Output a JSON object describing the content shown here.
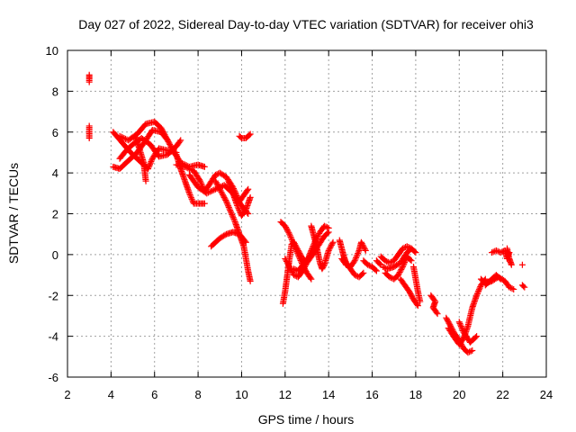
{
  "chart_data": {
    "type": "scatter",
    "title": "Day 027 of 2022, Sidereal Day-to-day VTEC variation (SDTVAR) for receiver ohi3",
    "xlabel": "GPS time / hours",
    "ylabel": "SDTVAR / TECUs",
    "xlim": [
      2,
      24
    ],
    "ylim": [
      -6,
      10
    ],
    "xticks": [
      2,
      4,
      6,
      8,
      10,
      12,
      14,
      16,
      18,
      20,
      22,
      24
    ],
    "yticks": [
      -6,
      -4,
      -2,
      0,
      2,
      4,
      6,
      8,
      10
    ],
    "xtick_labels": [
      "2",
      "4",
      "6",
      "8",
      "10",
      "12",
      "14",
      "16",
      "18",
      "20",
      "22",
      "24"
    ],
    "ytick_labels": [
      "-6",
      "-4",
      "-2",
      "0",
      "2",
      "4",
      "6",
      "8",
      "10"
    ],
    "grid": true,
    "marker": "plus",
    "series": [
      {
        "name": "SDTVAR",
        "color": "#ff0000",
        "segments": [
          [
            [
              3.0,
              8.8
            ],
            [
              3.0,
              8.6
            ],
            [
              3.0,
              8.45
            ]
          ],
          [
            [
              3.0,
              6.3
            ],
            [
              3.0,
              6.0
            ],
            [
              3.0,
              5.7
            ]
          ],
          [
            [
              4.1,
              4.3
            ],
            [
              4.4,
              4.2
            ],
            [
              4.8,
              4.6
            ],
            [
              5.2,
              5.0
            ],
            [
              5.6,
              5.6
            ],
            [
              5.9,
              6.1
            ],
            [
              6.3,
              6.0
            ],
            [
              6.6,
              5.6
            ]
          ],
          [
            [
              4.1,
              6.0
            ],
            [
              4.5,
              5.5
            ],
            [
              4.9,
              5.0
            ],
            [
              5.3,
              4.6
            ],
            [
              5.7,
              4.2
            ],
            [
              5.9,
              4.7
            ],
            [
              6.2,
              5.2
            ],
            [
              6.6,
              5.1
            ],
            [
              7.0,
              5.0
            ]
          ],
          [
            [
              4.4,
              5.8
            ],
            [
              4.8,
              5.6
            ],
            [
              5.2,
              5.9
            ],
            [
              5.6,
              6.4
            ],
            [
              6.0,
              6.5
            ],
            [
              6.3,
              6.2
            ],
            [
              6.6,
              5.6
            ],
            [
              6.9,
              5.0
            ],
            [
              7.2,
              4.5
            ],
            [
              7.6,
              4.3
            ],
            [
              8.0,
              4.4
            ],
            [
              8.3,
              4.3
            ]
          ],
          [
            [
              5.1,
              5.8
            ],
            [
              5.3,
              5.2
            ],
            [
              5.5,
              4.5
            ],
            [
              5.6,
              3.6
            ]
          ],
          [
            [
              4.4,
              4.7
            ],
            [
              4.7,
              5.1
            ],
            [
              5.0,
              5.4
            ],
            [
              5.4,
              5.7
            ],
            [
              5.8,
              5.4
            ],
            [
              6.2,
              4.8
            ],
            [
              6.6,
              4.9
            ],
            [
              7.0,
              5.3
            ],
            [
              7.2,
              5.6
            ]
          ],
          [
            [
              7.0,
              4.9
            ],
            [
              7.2,
              4.2
            ],
            [
              7.4,
              3.6
            ],
            [
              7.6,
              3.0
            ],
            [
              7.8,
              2.5
            ],
            [
              8.0,
              2.5
            ],
            [
              8.3,
              2.5
            ]
          ],
          [
            [
              7.0,
              4.4
            ],
            [
              7.4,
              4.3
            ],
            [
              7.8,
              4.1
            ],
            [
              8.1,
              3.6
            ],
            [
              8.3,
              3.1
            ],
            [
              8.5,
              3.4
            ],
            [
              8.8,
              3.9
            ],
            [
              9.0,
              4.0
            ],
            [
              9.3,
              3.8
            ],
            [
              9.6,
              3.3
            ],
            [
              9.9,
              2.6
            ],
            [
              10.1,
              2.9
            ],
            [
              10.3,
              3.2
            ]
          ],
          [
            [
              7.6,
              3.9
            ],
            [
              8.0,
              3.3
            ],
            [
              8.4,
              3.0
            ],
            [
              8.8,
              3.2
            ],
            [
              9.2,
              3.4
            ],
            [
              9.6,
              3.0
            ],
            [
              10.0,
              2.4
            ],
            [
              10.3,
              2.0
            ]
          ],
          [
            [
              8.6,
              0.4
            ],
            [
              8.8,
              0.6
            ],
            [
              9.0,
              0.8
            ],
            [
              9.3,
              1.0
            ],
            [
              9.6,
              1.1
            ],
            [
              9.9,
              1.0
            ],
            [
              10.2,
              0.6
            ]
          ],
          [
            [
              8.8,
              3.6
            ],
            [
              9.1,
              3.0
            ],
            [
              9.3,
              2.6
            ],
            [
              9.5,
              2.1
            ],
            [
              9.7,
              1.6
            ],
            [
              9.9,
              1.0
            ],
            [
              10.1,
              0.4
            ],
            [
              10.2,
              -0.2
            ],
            [
              10.3,
              -0.8
            ],
            [
              10.4,
              -1.3
            ]
          ],
          [
            [
              9.4,
              3.6
            ],
            [
              9.6,
              3.0
            ],
            [
              9.8,
              2.4
            ],
            [
              10.0,
              1.9
            ],
            [
              10.2,
              2.2
            ],
            [
              10.4,
              2.8
            ]
          ],
          [
            [
              9.9,
              5.8
            ],
            [
              10.0,
              5.7
            ],
            [
              10.2,
              5.7
            ],
            [
              10.4,
              5.9
            ]
          ],
          [
            [
              11.8,
              1.6
            ],
            [
              12.0,
              1.4
            ],
            [
              12.2,
              1.0
            ],
            [
              12.4,
              0.5
            ],
            [
              12.6,
              0.0
            ],
            [
              12.8,
              -0.5
            ],
            [
              13.0,
              -0.9
            ],
            [
              13.2,
              -1.2
            ]
          ],
          [
            [
              11.9,
              -2.4
            ],
            [
              12.0,
              -1.8
            ],
            [
              12.1,
              -1.0
            ],
            [
              12.2,
              -0.2
            ],
            [
              12.3,
              0.5
            ],
            [
              12.4,
              0.6
            ],
            [
              12.6,
              0.2
            ],
            [
              12.8,
              -0.2
            ],
            [
              13.0,
              -0.4
            ],
            [
              13.2,
              -0.1
            ],
            [
              13.4,
              0.2
            ]
          ],
          [
            [
              12.0,
              -0.2
            ],
            [
              12.2,
              -0.6
            ],
            [
              12.4,
              -1.0
            ],
            [
              12.6,
              -1.1
            ],
            [
              12.8,
              -0.8
            ],
            [
              13.0,
              -0.4
            ],
            [
              13.2,
              0.2
            ],
            [
              13.4,
              0.7
            ],
            [
              13.6,
              1.1
            ],
            [
              13.8,
              1.4
            ],
            [
              14.0,
              1.3
            ]
          ],
          [
            [
              12.4,
              -0.7
            ],
            [
              12.6,
              -0.8
            ],
            [
              12.9,
              -0.4
            ],
            [
              13.2,
              0.0
            ],
            [
              13.5,
              0.4
            ],
            [
              13.8,
              0.9
            ],
            [
              14.0,
              1.1
            ]
          ],
          [
            [
              13.2,
              1.4
            ],
            [
              13.3,
              1.0
            ],
            [
              13.4,
              0.6
            ],
            [
              13.5,
              0.1
            ],
            [
              13.6,
              -0.4
            ],
            [
              13.7,
              -0.7
            ],
            [
              13.8,
              -0.5
            ],
            [
              14.0,
              0.2
            ],
            [
              14.2,
              0.6
            ]
          ],
          [
            [
              14.5,
              0.7
            ],
            [
              14.6,
              0.3
            ],
            [
              14.7,
              -0.1
            ],
            [
              14.8,
              -0.4
            ],
            [
              15.0,
              -0.7
            ],
            [
              15.2,
              -1.0
            ],
            [
              15.4,
              -1.1
            ],
            [
              15.6,
              -0.9
            ]
          ],
          [
            [
              14.6,
              -0.2
            ],
            [
              14.8,
              -0.5
            ],
            [
              15.0,
              -0.6
            ],
            [
              15.2,
              -0.3
            ],
            [
              15.4,
              0.2
            ],
            [
              15.5,
              0.6
            ],
            [
              15.7,
              0.2
            ]
          ],
          [
            [
              15.6,
              -0.3
            ],
            [
              15.8,
              -0.5
            ],
            [
              16.0,
              -0.6
            ],
            [
              16.2,
              -0.8
            ]
          ],
          [
            [
              16.5,
              -0.6
            ],
            [
              16.7,
              -0.7
            ],
            [
              17.0,
              -0.6
            ],
            [
              17.3,
              -0.4
            ],
            [
              17.6,
              0.1
            ],
            [
              17.8,
              0.3
            ]
          ],
          [
            [
              16.4,
              -0.1
            ],
            [
              16.6,
              -0.3
            ],
            [
              16.8,
              -0.4
            ],
            [
              17.0,
              -0.3
            ],
            [
              17.2,
              0.0
            ],
            [
              17.4,
              0.3
            ],
            [
              17.6,
              0.4
            ],
            [
              17.8,
              0.3
            ],
            [
              18.0,
              0.1
            ]
          ],
          [
            [
              16.6,
              -0.9
            ],
            [
              16.8,
              -1.1
            ],
            [
              17.0,
              -1.2
            ],
            [
              17.2,
              -1.0
            ],
            [
              17.4,
              -0.6
            ],
            [
              17.6,
              -0.1
            ],
            [
              17.8,
              -0.3
            ]
          ],
          [
            [
              17.3,
              -1.2
            ],
            [
              17.5,
              -1.5
            ],
            [
              17.7,
              -1.8
            ],
            [
              17.9,
              -2.2
            ],
            [
              18.1,
              -2.5
            ]
          ],
          [
            [
              17.9,
              -0.6
            ],
            [
              18.0,
              -1.2
            ],
            [
              18.1,
              -1.8
            ],
            [
              18.2,
              -2.3
            ]
          ],
          [
            [
              16.2,
              -0.3
            ],
            [
              16.4,
              -0.5
            ]
          ],
          [
            [
              18.7,
              -2.0
            ],
            [
              18.9,
              -2.3
            ],
            [
              18.8,
              -2.6
            ],
            [
              19.0,
              -2.9
            ]
          ],
          [
            [
              19.4,
              -3.1
            ],
            [
              19.6,
              -3.5
            ],
            [
              19.8,
              -3.9
            ],
            [
              20.0,
              -4.2
            ],
            [
              20.2,
              -4.6
            ],
            [
              20.4,
              -4.8
            ],
            [
              20.6,
              -4.7
            ]
          ],
          [
            [
              19.5,
              -3.6
            ],
            [
              19.8,
              -4.1
            ],
            [
              20.0,
              -4.4
            ],
            [
              20.2,
              -4.1
            ],
            [
              20.4,
              -3.5
            ],
            [
              20.6,
              -2.6
            ],
            [
              20.8,
              -2.0
            ],
            [
              21.0,
              -1.5
            ],
            [
              21.2,
              -1.2
            ]
          ],
          [
            [
              20.0,
              -3.3
            ],
            [
              20.2,
              -3.8
            ],
            [
              20.5,
              -4.3
            ],
            [
              20.8,
              -4.0
            ]
          ],
          [
            [
              21.0,
              -1.2
            ],
            [
              21.2,
              -1.4
            ],
            [
              21.5,
              -1.3
            ],
            [
              21.8,
              -1.1
            ],
            [
              22.1,
              -1.3
            ],
            [
              22.3,
              -1.6
            ],
            [
              22.5,
              -1.7
            ]
          ],
          [
            [
              21.2,
              -1.5
            ],
            [
              21.4,
              -1.3
            ],
            [
              21.7,
              -1.0
            ],
            [
              21.9,
              -1.2
            ]
          ],
          [
            [
              21.5,
              0.1
            ],
            [
              21.7,
              0.2
            ],
            [
              21.9,
              0.1
            ],
            [
              22.1,
              0.2
            ],
            [
              22.2,
              -0.2
            ],
            [
              22.3,
              0.1
            ]
          ],
          [
            [
              22.2,
              0.3
            ],
            [
              22.3,
              -0.2
            ],
            [
              22.4,
              -0.5
            ]
          ],
          [
            [
              22.9,
              -1.5
            ],
            [
              23.0,
              -1.6
            ]
          ],
          [
            [
              22.9,
              -0.5
            ]
          ]
        ]
      }
    ]
  }
}
